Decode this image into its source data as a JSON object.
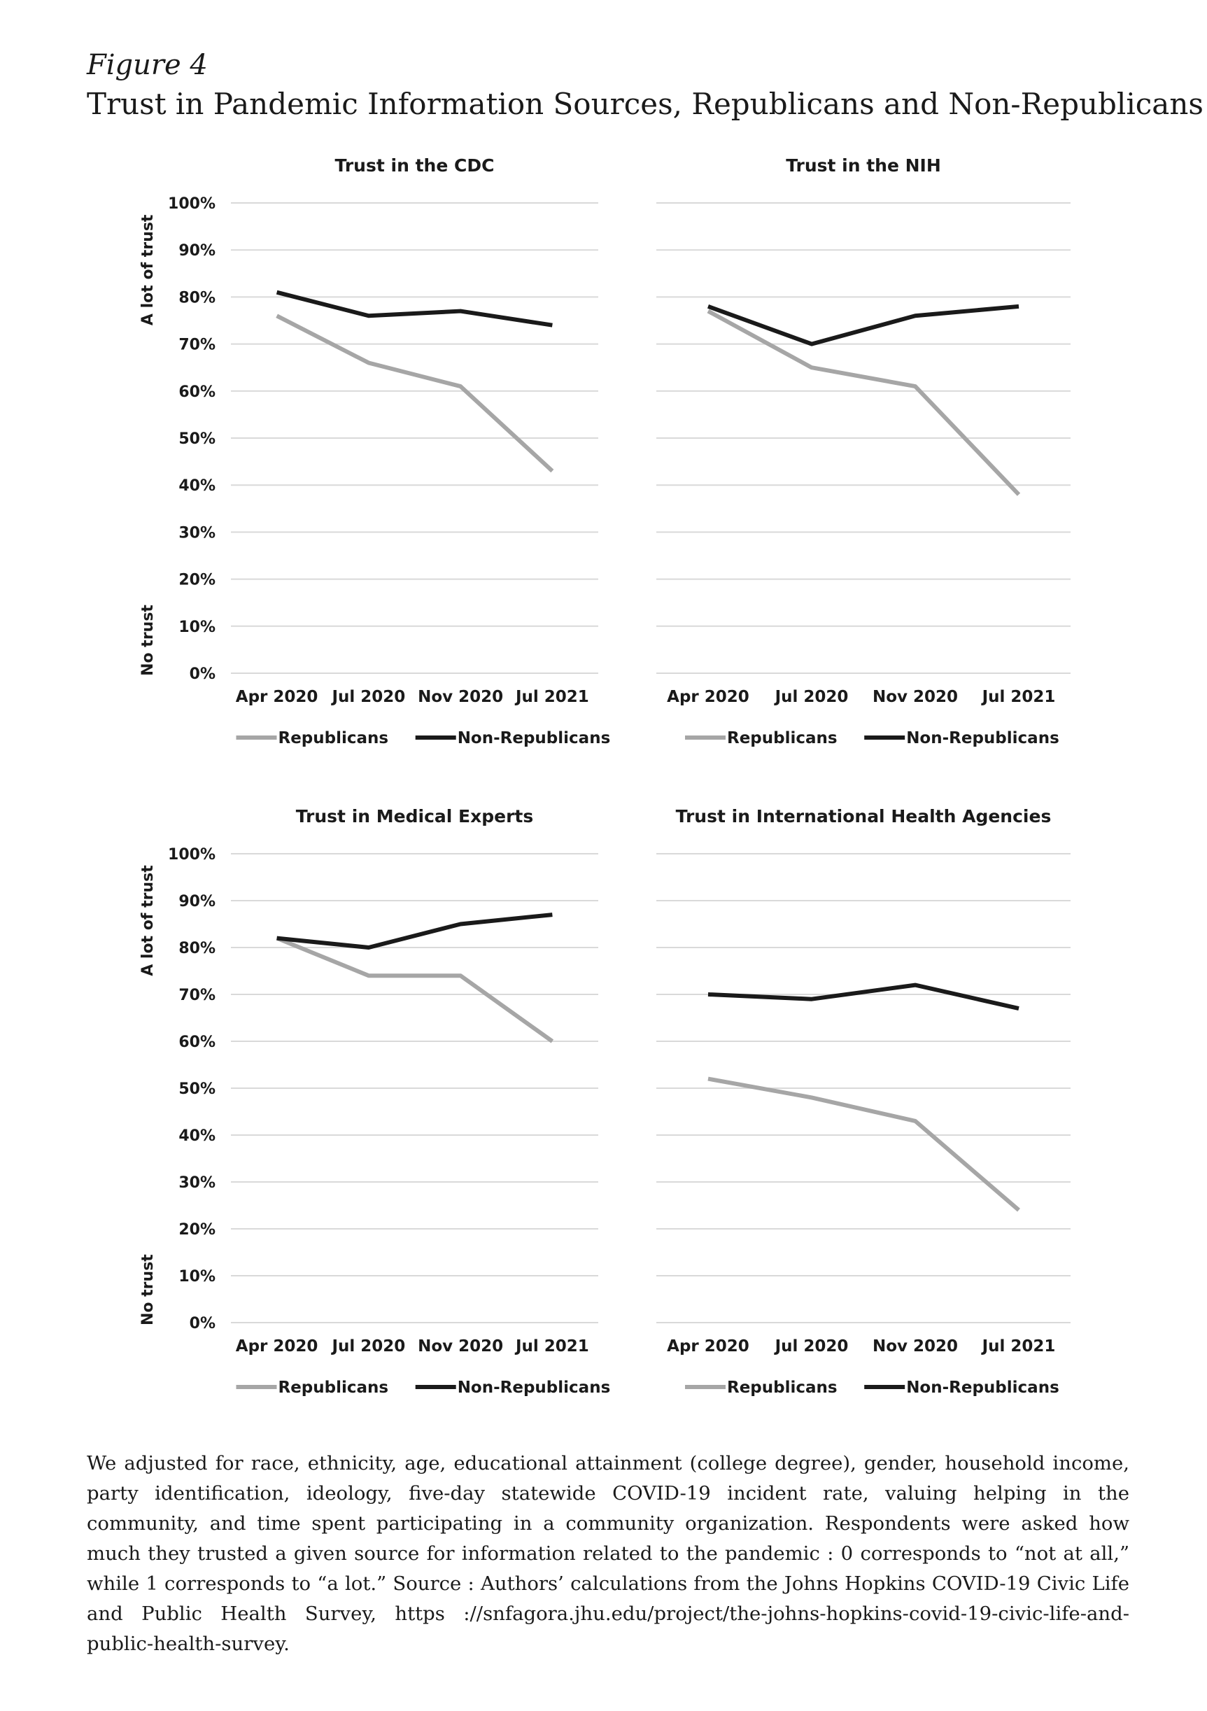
{
  "figure": {
    "label": "Figure 4",
    "title": "Trust in Pandemic Information Sources, Republicans and Non-Republicans"
  },
  "caption": "We adjusted for race, ethnicity, age, educational attainment (college degree), gender, household income, party identification, ideology, five-day statewide COVID-19 incident rate, valuing helping in the community, and time spent participating in a community organization. Respondents were asked how much they trusted a given source for information related to the pandemic : 0 corresponds to “not at all,” while 1 corresponds to “a lot.” Source : Authors’ calculations from the Johns Hopkins COVID-19 Civic Life and Public Health Survey, https ://snfagora.jhu.edu/project/the-johns-hopkins-covid-19-civic-life-and-public-health-survey.",
  "colors": {
    "republicans": "#a6a6a6",
    "non_republicans": "#1a1a1a",
    "grid": "#d9d9d9",
    "text": "#1a1a1a"
  },
  "chart_data": [
    {
      "type": "line",
      "title": "Trust in the CDC",
      "categories": [
        "Apr 2020",
        "Jul 2020",
        "Nov 2020",
        "Jul 2021"
      ],
      "ylim": [
        0,
        100
      ],
      "yticks": [
        "0%",
        "10%",
        "20%",
        "30%",
        "40%",
        "50%",
        "60%",
        "70%",
        "80%",
        "90%",
        "100%"
      ],
      "ylabel_top": "A lot of trust",
      "ylabel_bottom": "No trust",
      "grid": true,
      "legend": "bottom",
      "series": [
        {
          "name": "Republicans",
          "values": [
            76,
            66,
            61,
            43
          ]
        },
        {
          "name": "Non-Republicans",
          "values": [
            81,
            76,
            77,
            74
          ]
        }
      ]
    },
    {
      "type": "line",
      "title": "Trust in the NIH",
      "categories": [
        "Apr 2020",
        "Jul 2020",
        "Nov 2020",
        "Jul 2021"
      ],
      "ylim": [
        0,
        100
      ],
      "grid": true,
      "legend": "bottom",
      "series": [
        {
          "name": "Republicans",
          "values": [
            77,
            65,
            61,
            38
          ]
        },
        {
          "name": "Non-Republicans",
          "values": [
            78,
            70,
            76,
            78
          ]
        }
      ]
    },
    {
      "type": "line",
      "title": "Trust in Medical Experts",
      "categories": [
        "Apr 2020",
        "Jul 2020",
        "Nov 2020",
        "Jul 2021"
      ],
      "ylim": [
        0,
        100
      ],
      "yticks": [
        "0%",
        "10%",
        "20%",
        "30%",
        "40%",
        "50%",
        "60%",
        "70%",
        "80%",
        "90%",
        "100%"
      ],
      "ylabel_top": "A lot of trust",
      "ylabel_bottom": "No trust",
      "grid": true,
      "legend": "bottom",
      "series": [
        {
          "name": "Republicans",
          "values": [
            82,
            74,
            74,
            60
          ]
        },
        {
          "name": "Non-Republicans",
          "values": [
            82,
            80,
            85,
            87
          ]
        }
      ]
    },
    {
      "type": "line",
      "title": "Trust in International Health Agencies",
      "categories": [
        "Apr 2020",
        "Jul 2020",
        "Nov 2020",
        "Jul 2021"
      ],
      "ylim": [
        0,
        100
      ],
      "grid": true,
      "legend": "bottom",
      "series": [
        {
          "name": "Republicans",
          "values": [
            52,
            48,
            43,
            24
          ]
        },
        {
          "name": "Non-Republicans",
          "values": [
            70,
            69,
            72,
            67
          ]
        }
      ]
    }
  ]
}
